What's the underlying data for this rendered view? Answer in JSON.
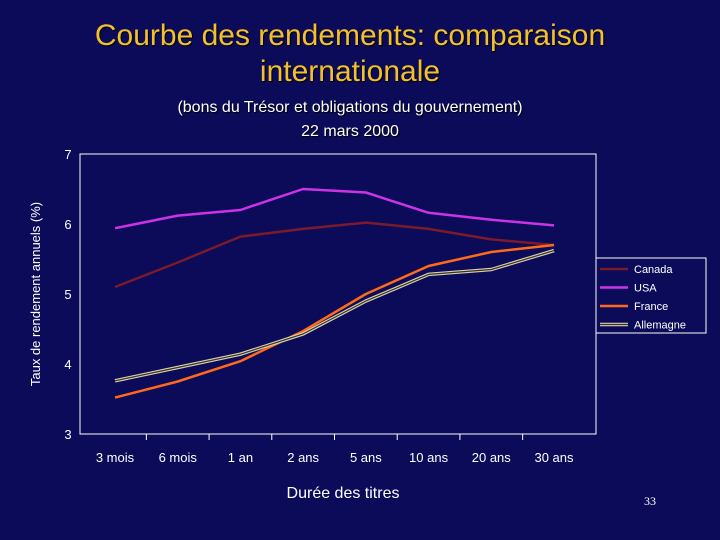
{
  "slide": {
    "title": "Courbe des rendements: comparaison internationale",
    "subtitle_line1": "(bons du Trésor et obligations du gouvernement)",
    "subtitle_line2": "22 mars 2000",
    "page_number": "33"
  },
  "colors": {
    "background": "#0b0b5a",
    "title": "#f2c02e",
    "canada": "#7a1a2a",
    "usa": "#cc33e6",
    "france": "#ff6a1a",
    "allemagne_outline": "#d8d0b0",
    "allemagne_inner": "#3a3320"
  },
  "chart_data": {
    "type": "line",
    "title": "",
    "xlabel": "Durée des titres",
    "ylabel": "Taux de rendement annuels (%)",
    "categories": [
      "3 mois",
      "6 mois",
      "1 an",
      "2 ans",
      "5 ans",
      "10 ans",
      "20 ans",
      "30 ans"
    ],
    "ylim": [
      3,
      7
    ],
    "yticks": [
      "3",
      "4",
      "5",
      "6",
      "7"
    ],
    "grid": false,
    "legend_position": "right",
    "series": [
      {
        "name": "Canada",
        "color": "#7a1a2a",
        "values": [
          5.1,
          5.45,
          5.82,
          5.93,
          6.02,
          5.93,
          5.78,
          5.7
        ]
      },
      {
        "name": "USA",
        "color": "#cc33e6",
        "values": [
          5.94,
          6.12,
          6.2,
          6.5,
          6.45,
          6.16,
          6.06,
          5.98
        ]
      },
      {
        "name": "France",
        "color": "#ff6a1a",
        "values": [
          3.52,
          3.75,
          4.04,
          4.47,
          5.0,
          5.4,
          5.6,
          5.7
        ]
      },
      {
        "name": "Allemagne",
        "color": "#d8d0b0",
        "values": [
          3.76,
          3.95,
          4.14,
          4.43,
          4.9,
          5.28,
          5.35,
          5.62
        ]
      }
    ]
  }
}
